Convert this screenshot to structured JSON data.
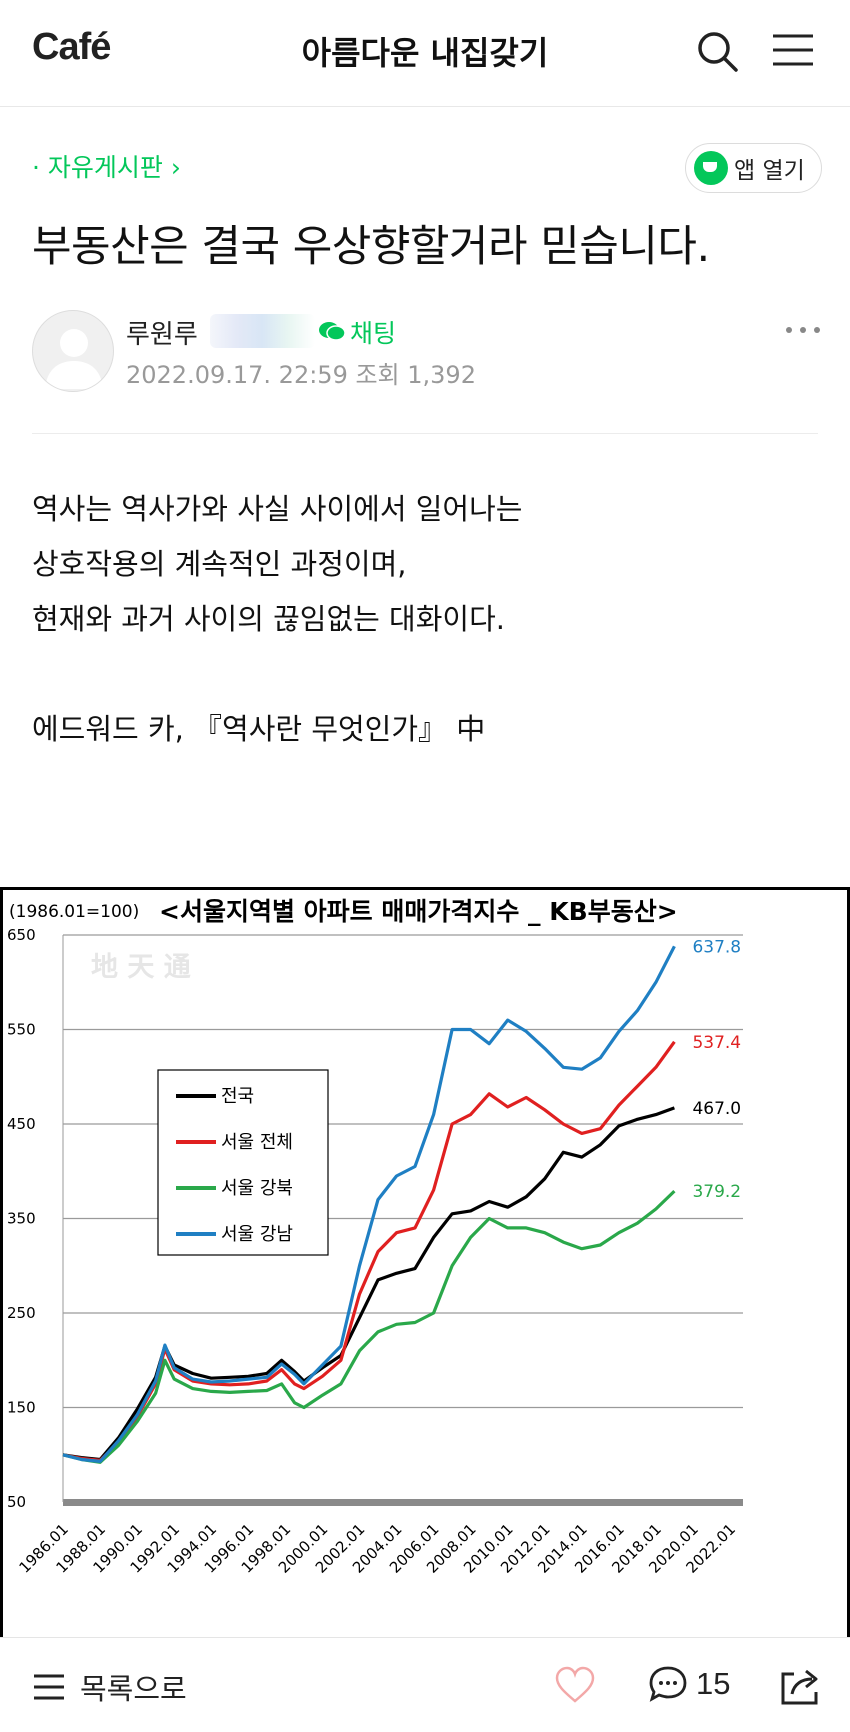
{
  "header": {
    "logo": "Café",
    "cafe_name": "아름다운 내집갖기"
  },
  "board": {
    "name": "· 자유게시판 ›",
    "open_app_label": "앱 열기"
  },
  "post": {
    "title": "부동산은 결국 우상향할거라 믿습니다.",
    "author": "루원루",
    "chat_label": "채팅",
    "meta": "2022.09.17. 22:59  조회 1,392",
    "body_lines": [
      "역사는 역사가와 사실 사이에서 일어나는",
      "상호작용의 계속적인 과정이며,",
      "현재와 과거 사이의 끊임없는 대화이다.",
      "",
      "에드워드 카, 『역사란 무엇인가』 中"
    ]
  },
  "chart_data": {
    "type": "line",
    "title": "<서울지역별 아파트 매매가격지수 _ KB부동산>",
    "base_label": "(1986.01=100)",
    "watermark": "地 天 通",
    "ylim": [
      50,
      650
    ],
    "yticks": [
      650,
      550,
      450,
      350,
      250,
      150,
      50
    ],
    "xticks": [
      "1986.01",
      "1988.01",
      "1990.01",
      "1992.01",
      "1994.01",
      "1996.01",
      "1998.01",
      "2000.01",
      "2002.01",
      "2004.01",
      "2006.01",
      "2008.01",
      "2010.01",
      "2012.01",
      "2014.01",
      "2016.01",
      "2018.01",
      "2020.01",
      "2022.01"
    ],
    "legend_position": "left-middle",
    "grid": true,
    "series": [
      {
        "name": "전국",
        "color": "#000000",
        "end_label": "467.0",
        "x": [
          1986,
          1987,
          1988,
          1989,
          1990,
          1991,
          1991.5,
          1992,
          1993,
          1994,
          1995,
          1996,
          1997,
          1997.8,
          1998.5,
          1999,
          2000,
          2001,
          2002,
          2003,
          2004,
          2005,
          2006,
          2007,
          2008,
          2009,
          2010,
          2011,
          2012,
          2013,
          2014,
          2015,
          2016,
          2017,
          2018,
          2019
        ],
        "y": [
          100,
          97,
          95,
          118,
          148,
          182,
          215,
          195,
          186,
          181,
          182,
          183,
          186,
          200,
          188,
          178,
          192,
          205,
          245,
          285,
          292,
          297,
          330,
          355,
          358,
          368,
          362,
          373,
          392,
          420,
          415,
          428,
          448,
          455,
          460,
          467
        ]
      },
      {
        "name": "서울 전체",
        "color": "#e02020",
        "end_label": "537.4",
        "x": [
          1986,
          1987,
          1988,
          1989,
          1990,
          1991,
          1991.5,
          1992,
          1993,
          1994,
          1995,
          1996,
          1997,
          1997.8,
          1998.5,
          1999,
          2000,
          2001,
          2002,
          2003,
          2004,
          2005,
          2006,
          2007,
          2008,
          2009,
          2010,
          2011,
          2012,
          2013,
          2014,
          2015,
          2016,
          2017,
          2018,
          2019
        ],
        "y": [
          100,
          96,
          94,
          113,
          140,
          175,
          212,
          190,
          178,
          175,
          174,
          175,
          178,
          190,
          175,
          170,
          183,
          200,
          270,
          315,
          335,
          340,
          380,
          450,
          460,
          482,
          468,
          478,
          465,
          450,
          440,
          445,
          470,
          490,
          510,
          537
        ]
      },
      {
        "name": "서울 강북",
        "color": "#2aa84a",
        "end_label": "379.2",
        "x": [
          1986,
          1987,
          1988,
          1989,
          1990,
          1991,
          1991.5,
          1992,
          1993,
          1994,
          1995,
          1996,
          1997,
          1997.8,
          1998.5,
          1999,
          2000,
          2001,
          2002,
          2003,
          2004,
          2005,
          2006,
          2007,
          2008,
          2009,
          2010,
          2011,
          2012,
          2013,
          2014,
          2015,
          2016,
          2017,
          2018,
          2019
        ],
        "y": [
          100,
          95,
          92,
          110,
          135,
          165,
          200,
          180,
          170,
          167,
          166,
          167,
          168,
          175,
          155,
          150,
          163,
          175,
          210,
          230,
          238,
          240,
          250,
          300,
          330,
          350,
          340,
          340,
          335,
          325,
          318,
          322,
          335,
          345,
          360,
          379
        ]
      },
      {
        "name": "서울 강남",
        "color": "#1f7fc3",
        "end_label": "637.8",
        "x": [
          1986,
          1987,
          1988,
          1989,
          1990,
          1991,
          1991.5,
          1992,
          1993,
          1994,
          1995,
          1996,
          1997,
          1997.8,
          1998.5,
          1999,
          2000,
          2001,
          2002,
          2003,
          2004,
          2005,
          2006,
          2007,
          2008,
          2009,
          2010,
          2011,
          2012,
          2013,
          2014,
          2015,
          2016,
          2017,
          2018,
          2019
        ],
        "y": [
          100,
          95,
          93,
          115,
          142,
          178,
          216,
          192,
          180,
          177,
          178,
          180,
          182,
          196,
          185,
          175,
          195,
          215,
          300,
          370,
          395,
          405,
          460,
          550,
          550,
          535,
          560,
          548,
          530,
          510,
          508,
          520,
          548,
          570,
          600,
          638
        ]
      }
    ]
  },
  "bottom": {
    "list_label": "목록으로",
    "comment_count": "15"
  },
  "colors": {
    "brand_green": "#03c75a",
    "like_heart": "#f3a8a8"
  },
  "icons": [
    "search-icon",
    "menu-icon",
    "cafe-cup-icon",
    "chat-bubble-icon",
    "more-dots-icon",
    "avatar-icon",
    "list-icon",
    "heart-icon",
    "comment-icon",
    "share-icon"
  ]
}
